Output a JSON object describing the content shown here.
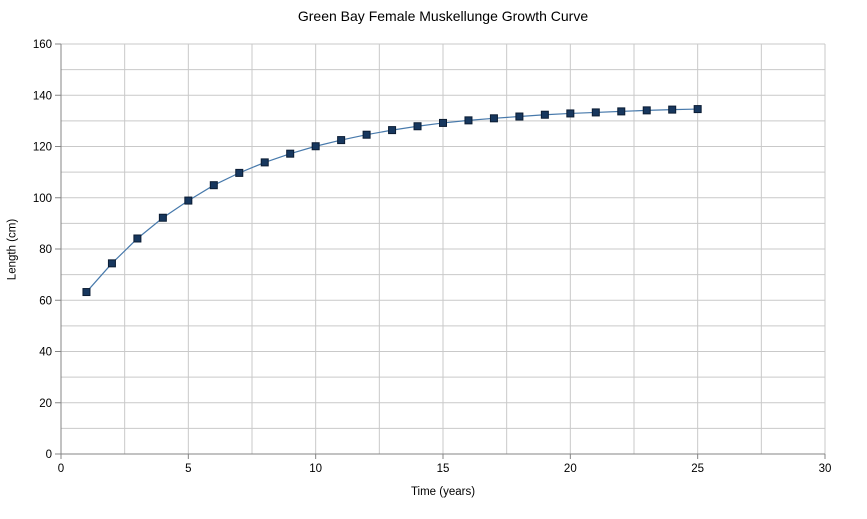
{
  "chart_data": {
    "type": "line",
    "title": "Green Bay Female Muskellunge Growth Curve",
    "xlabel": "Time (years)",
    "ylabel": "Length (cm)",
    "x": [
      1,
      2,
      3,
      4,
      5,
      6,
      7,
      8,
      9,
      10,
      11,
      12,
      13,
      14,
      15,
      16,
      17,
      18,
      19,
      20,
      21,
      22,
      23,
      24,
      25
    ],
    "y": [
      63.2,
      74.4,
      84.1,
      92.2,
      98.9,
      104.9,
      109.7,
      113.8,
      117.2,
      120.1,
      122.5,
      124.6,
      126.4,
      127.9,
      129.2,
      130.2,
      131.0,
      131.7,
      132.4,
      132.9,
      133.3,
      133.7,
      134.1,
      134.4,
      134.6
    ],
    "xlim": [
      0,
      30
    ],
    "ylim": [
      0,
      160
    ],
    "x_tick_values": [
      0,
      5,
      10,
      15,
      20,
      25,
      30
    ],
    "x_tick_labels": [
      "0",
      "5",
      "10",
      "15",
      "20",
      "25",
      "30"
    ],
    "x_gridline_step": 2.5,
    "y_tick_values": [
      0,
      20,
      40,
      60,
      80,
      100,
      120,
      140,
      160
    ],
    "y_tick_labels": [
      "0",
      "20",
      "40",
      "60",
      "80",
      "100",
      "120",
      "140",
      "160"
    ],
    "y_gridline_step": 10,
    "grid": true,
    "legend": false,
    "marker": "square",
    "colors": {
      "line": "#4779ab",
      "marker_fill": "#17375e",
      "marker_border": "#0b1c33",
      "gridline": "#c9c9c9",
      "axis": "#848484",
      "background": "#ffffff",
      "text": "#000000"
    }
  }
}
